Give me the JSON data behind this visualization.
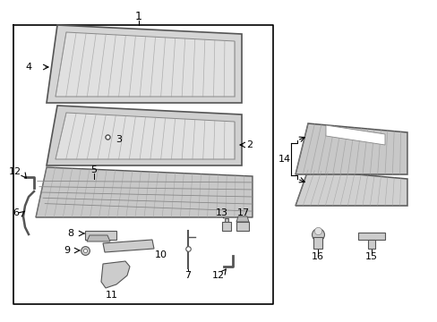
{
  "bg_color": "#ffffff",
  "line_color": "#000000",
  "dark_gray": "#555555",
  "mid_gray": "#888888",
  "light_gray": "#cccccc",
  "lighter_gray": "#e0e0e0",
  "hatch_color": "#999999"
}
